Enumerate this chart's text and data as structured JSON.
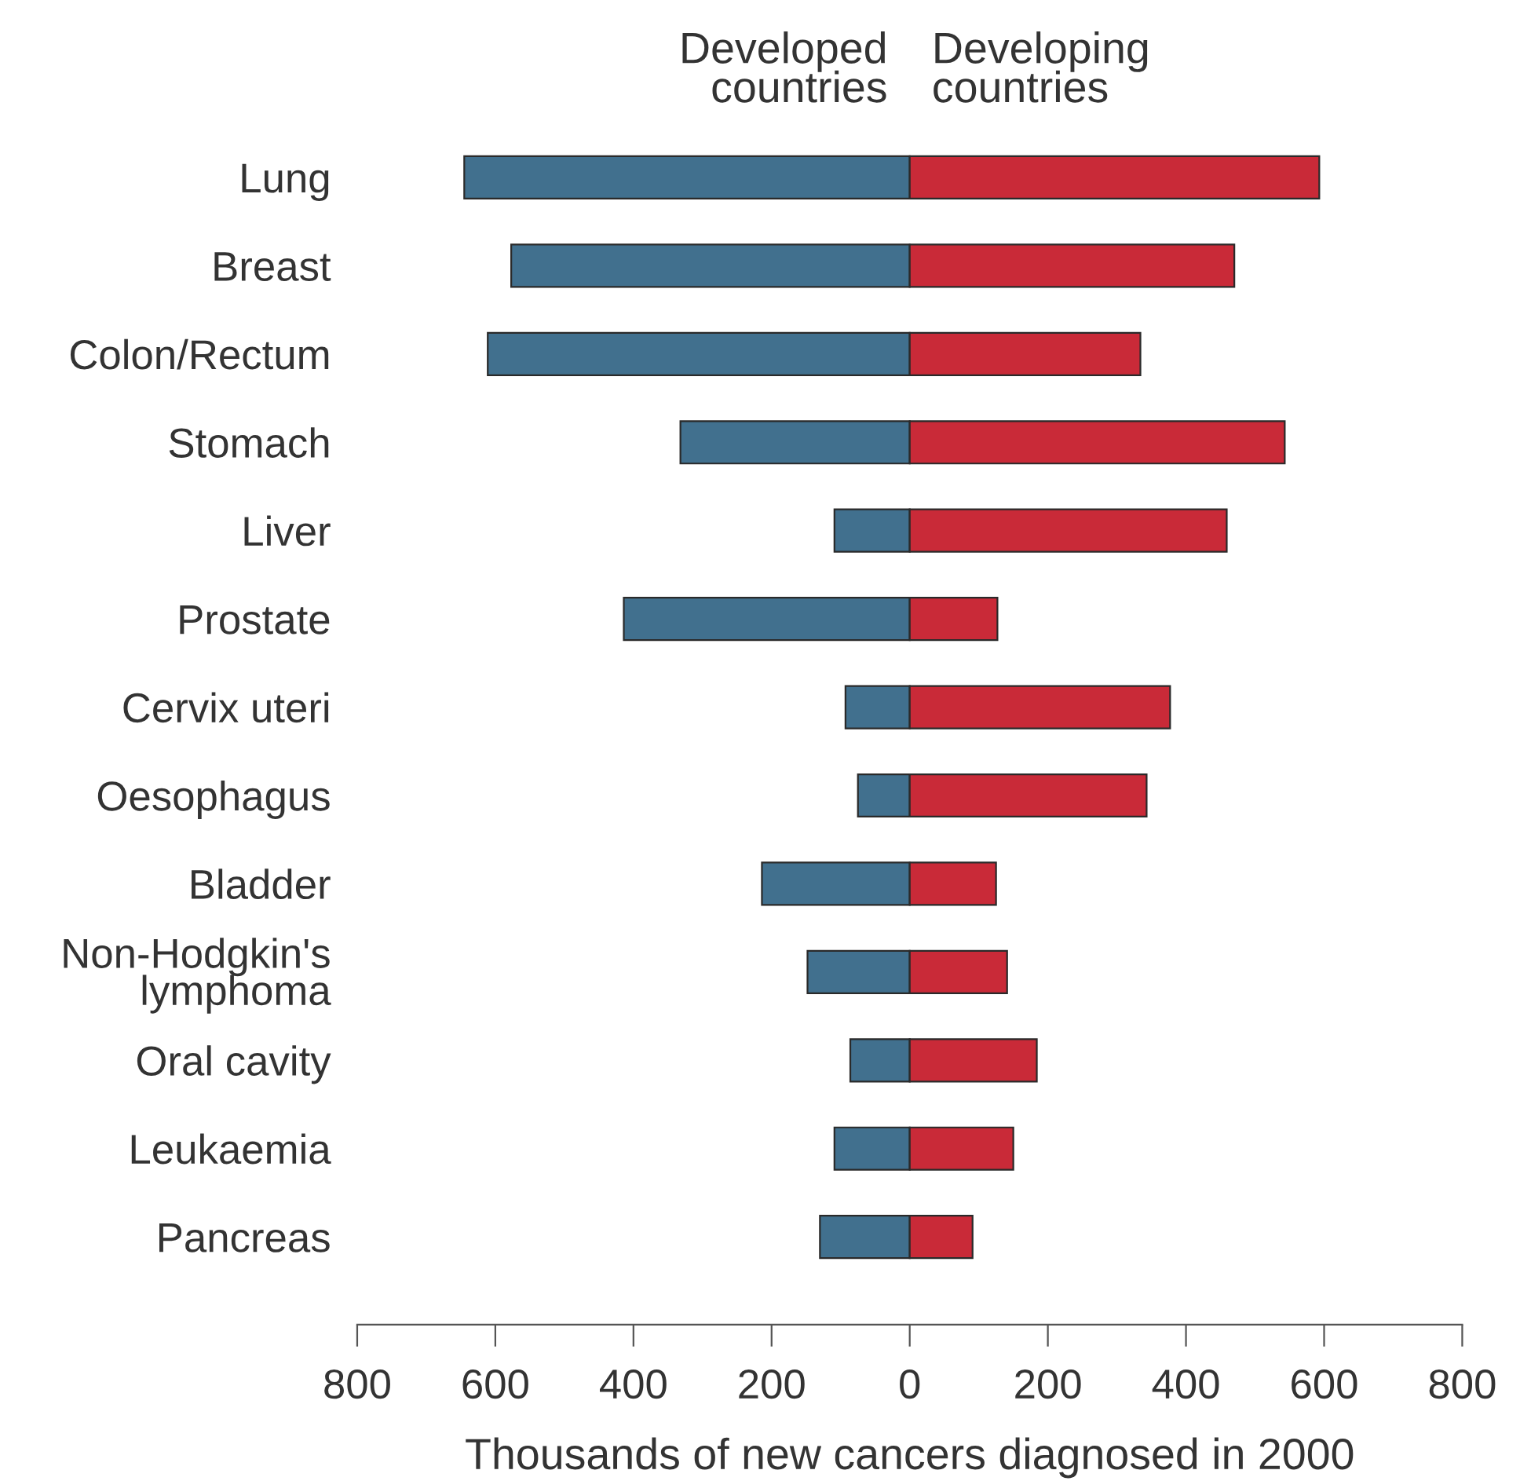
{
  "chart_data": {
    "type": "bar",
    "orientation": "horizontal",
    "xlabel": "Thousands of new cancers diagnosed in 2000",
    "categories": [
      "Lung",
      "Breast",
      "Colon/Rectum",
      "Stomach",
      "Liver",
      "Prostate",
      "Cervix uteri",
      "Oesophagus",
      "Bladder",
      "Non-Hodgkin's\nlymphoma",
      "Oral cavity",
      "Leukaemia",
      "Pancreas"
    ],
    "series": [
      {
        "name": "Developed\ncountries",
        "color": "#41708e",
        "values": [
          -645,
          -577,
          -611,
          -332,
          -109,
          -414,
          -93,
          -75,
          -214,
          -148,
          -86,
          -109,
          -130
        ]
      },
      {
        "name": "Developing\ncountries",
        "color": "#c92a38",
        "values": [
          593,
          470,
          334,
          543,
          459,
          127,
          377,
          343,
          125,
          141,
          184,
          150,
          91
        ]
      }
    ],
    "xlim": [
      -800,
      800
    ],
    "xticks": [
      {
        "value": -800,
        "label": "800"
      },
      {
        "value": -600,
        "label": "600"
      },
      {
        "value": -400,
        "label": "400"
      },
      {
        "value": -200,
        "label": "200"
      },
      0,
      200,
      400,
      600,
      800
    ],
    "stacked": true,
    "grid": false
  }
}
